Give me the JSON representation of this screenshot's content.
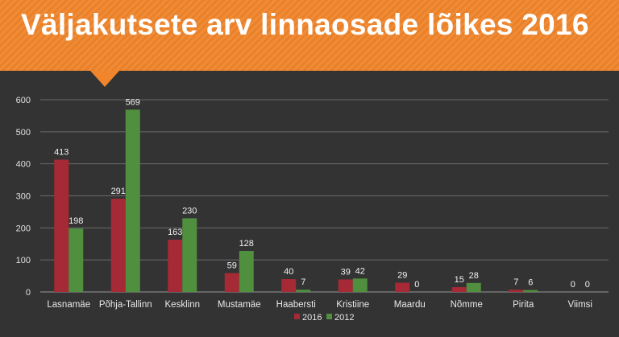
{
  "colors": {
    "banner": "#f0852b",
    "background": "#333333",
    "series_2016": "#a52a36",
    "series_2012": "#4f8f3e"
  },
  "chart_data": {
    "type": "bar",
    "title": "Väljakutsete arv linnaosade lõikes 2016",
    "categories": [
      "Lasnamäe",
      "Põhja-Tallinn",
      "Kesklinn",
      "Mustamäe",
      "Haabersti",
      "Kristiine",
      "Maardu",
      "Nõmme",
      "Pirita",
      "Viimsi"
    ],
    "series": [
      {
        "name": "2016",
        "values": [
          413,
          291,
          163,
          59,
          40,
          39,
          29,
          15,
          7,
          0
        ]
      },
      {
        "name": "2012",
        "values": [
          198,
          569,
          230,
          128,
          7,
          42,
          0,
          28,
          6,
          0
        ]
      }
    ],
    "ylim": [
      0,
      600
    ],
    "yticks": [
      0,
      100,
      200,
      300,
      400,
      500,
      600
    ],
    "grid": true,
    "legend": "bottom-center",
    "xlabel": "",
    "ylabel": ""
  }
}
